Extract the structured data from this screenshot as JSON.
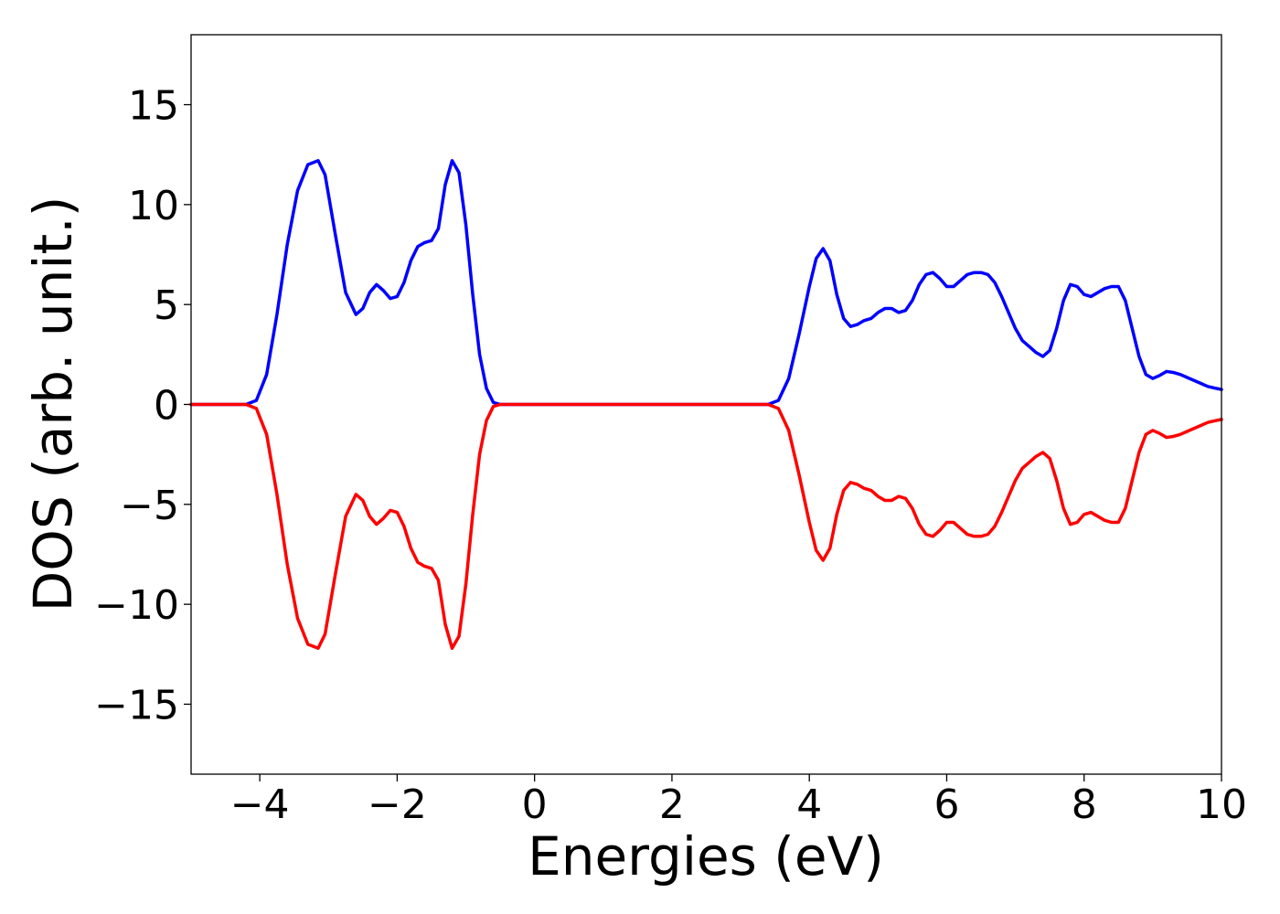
{
  "chart_data": {
    "type": "line",
    "title": "",
    "xlabel": "Energies (eV)",
    "ylabel": "DOS (arb. unit.)",
    "xlim": [
      -5,
      10
    ],
    "ylim": [
      -18.5,
      18.5
    ],
    "grid": false,
    "legend": "none",
    "x_ticks": [
      {
        "value": -4,
        "label": "−4"
      },
      {
        "value": -2,
        "label": "−2"
      },
      {
        "value": 0,
        "label": "0"
      },
      {
        "value": 2,
        "label": "2"
      },
      {
        "value": 4,
        "label": "4"
      },
      {
        "value": 6,
        "label": "6"
      },
      {
        "value": 8,
        "label": "8"
      },
      {
        "value": 10,
        "label": "10"
      }
    ],
    "y_ticks": [
      {
        "value": 15,
        "label": "15"
      },
      {
        "value": 10,
        "label": "10"
      },
      {
        "value": 5,
        "label": "5"
      },
      {
        "value": 0,
        "label": "0"
      },
      {
        "value": -5,
        "label": "−5"
      },
      {
        "value": -10,
        "label": "−10"
      },
      {
        "value": -15,
        "label": "−15"
      }
    ],
    "series": [
      {
        "color": "#0000ff",
        "points": [
          [
            -5,
            0
          ],
          [
            -4.2,
            0
          ],
          [
            -4.05,
            0.2
          ],
          [
            -3.9,
            1.5
          ],
          [
            -3.75,
            4.5
          ],
          [
            -3.6,
            8.0
          ],
          [
            -3.45,
            10.7
          ],
          [
            -3.3,
            12.0
          ],
          [
            -3.15,
            12.2
          ],
          [
            -3.05,
            11.5
          ],
          [
            -2.9,
            8.5
          ],
          [
            -2.75,
            5.6
          ],
          [
            -2.6,
            4.5
          ],
          [
            -2.5,
            4.8
          ],
          [
            -2.4,
            5.6
          ],
          [
            -2.3,
            6.0
          ],
          [
            -2.2,
            5.7
          ],
          [
            -2.1,
            5.3
          ],
          [
            -2.0,
            5.4
          ],
          [
            -1.9,
            6.1
          ],
          [
            -1.8,
            7.2
          ],
          [
            -1.7,
            7.9
          ],
          [
            -1.6,
            8.1
          ],
          [
            -1.5,
            8.2
          ],
          [
            -1.4,
            8.8
          ],
          [
            -1.3,
            11.0
          ],
          [
            -1.2,
            12.2
          ],
          [
            -1.1,
            11.6
          ],
          [
            -1.0,
            9.0
          ],
          [
            -0.9,
            5.5
          ],
          [
            -0.8,
            2.5
          ],
          [
            -0.7,
            0.8
          ],
          [
            -0.6,
            0.1
          ],
          [
            -0.5,
            0
          ],
          [
            3.4,
            0
          ],
          [
            3.55,
            0.2
          ],
          [
            3.7,
            1.3
          ],
          [
            3.85,
            3.5
          ],
          [
            4.0,
            5.9
          ],
          [
            4.1,
            7.3
          ],
          [
            4.2,
            7.8
          ],
          [
            4.3,
            7.2
          ],
          [
            4.4,
            5.5
          ],
          [
            4.5,
            4.3
          ],
          [
            4.6,
            3.9
          ],
          [
            4.7,
            4.0
          ],
          [
            4.8,
            4.2
          ],
          [
            4.9,
            4.3
          ],
          [
            5.0,
            4.6
          ],
          [
            5.1,
            4.8
          ],
          [
            5.2,
            4.8
          ],
          [
            5.3,
            4.6
          ],
          [
            5.4,
            4.7
          ],
          [
            5.5,
            5.2
          ],
          [
            5.6,
            6.0
          ],
          [
            5.7,
            6.5
          ],
          [
            5.8,
            6.6
          ],
          [
            5.9,
            6.3
          ],
          [
            6.0,
            5.9
          ],
          [
            6.1,
            5.9
          ],
          [
            6.2,
            6.2
          ],
          [
            6.3,
            6.5
          ],
          [
            6.4,
            6.6
          ],
          [
            6.5,
            6.6
          ],
          [
            6.6,
            6.5
          ],
          [
            6.7,
            6.1
          ],
          [
            6.8,
            5.4
          ],
          [
            6.9,
            4.6
          ],
          [
            7.0,
            3.8
          ],
          [
            7.1,
            3.2
          ],
          [
            7.2,
            2.9
          ],
          [
            7.3,
            2.6
          ],
          [
            7.4,
            2.4
          ],
          [
            7.5,
            2.7
          ],
          [
            7.6,
            3.8
          ],
          [
            7.7,
            5.2
          ],
          [
            7.8,
            6.0
          ],
          [
            7.9,
            5.9
          ],
          [
            8.0,
            5.5
          ],
          [
            8.1,
            5.4
          ],
          [
            8.2,
            5.6
          ],
          [
            8.3,
            5.8
          ],
          [
            8.4,
            5.9
          ],
          [
            8.5,
            5.9
          ],
          [
            8.6,
            5.2
          ],
          [
            8.7,
            3.8
          ],
          [
            8.8,
            2.4
          ],
          [
            8.9,
            1.5
          ],
          [
            9.0,
            1.3
          ],
          [
            9.1,
            1.45
          ],
          [
            9.2,
            1.65
          ],
          [
            9.3,
            1.6
          ],
          [
            9.4,
            1.5
          ],
          [
            9.5,
            1.35
          ],
          [
            9.6,
            1.2
          ],
          [
            9.7,
            1.05
          ],
          [
            9.8,
            0.9
          ],
          [
            9.9,
            0.82
          ],
          [
            10.0,
            0.75
          ]
        ]
      },
      {
        "color": "#ff0000",
        "points": [
          [
            -5,
            0
          ],
          [
            -4.2,
            0
          ],
          [
            -4.05,
            -0.2
          ],
          [
            -3.9,
            -1.5
          ],
          [
            -3.75,
            -4.5
          ],
          [
            -3.6,
            -8.0
          ],
          [
            -3.45,
            -10.7
          ],
          [
            -3.3,
            -12.0
          ],
          [
            -3.15,
            -12.2
          ],
          [
            -3.05,
            -11.5
          ],
          [
            -2.9,
            -8.5
          ],
          [
            -2.75,
            -5.6
          ],
          [
            -2.6,
            -4.5
          ],
          [
            -2.5,
            -4.8
          ],
          [
            -2.4,
            -5.6
          ],
          [
            -2.3,
            -6.0
          ],
          [
            -2.2,
            -5.7
          ],
          [
            -2.1,
            -5.3
          ],
          [
            -2.0,
            -5.4
          ],
          [
            -1.9,
            -6.1
          ],
          [
            -1.8,
            -7.2
          ],
          [
            -1.7,
            -7.9
          ],
          [
            -1.6,
            -8.1
          ],
          [
            -1.5,
            -8.2
          ],
          [
            -1.4,
            -8.8
          ],
          [
            -1.3,
            -11.0
          ],
          [
            -1.2,
            -12.2
          ],
          [
            -1.1,
            -11.6
          ],
          [
            -1.0,
            -9.0
          ],
          [
            -0.9,
            -5.5
          ],
          [
            -0.8,
            -2.5
          ],
          [
            -0.7,
            -0.8
          ],
          [
            -0.6,
            -0.1
          ],
          [
            -0.5,
            0
          ],
          [
            3.4,
            0
          ],
          [
            3.55,
            -0.2
          ],
          [
            3.7,
            -1.3
          ],
          [
            3.85,
            -3.5
          ],
          [
            4.0,
            -5.9
          ],
          [
            4.1,
            -7.3
          ],
          [
            4.2,
            -7.8
          ],
          [
            4.3,
            -7.2
          ],
          [
            4.4,
            -5.5
          ],
          [
            4.5,
            -4.3
          ],
          [
            4.6,
            -3.9
          ],
          [
            4.7,
            -4.0
          ],
          [
            4.8,
            -4.2
          ],
          [
            4.9,
            -4.3
          ],
          [
            5.0,
            -4.6
          ],
          [
            5.1,
            -4.8
          ],
          [
            5.2,
            -4.8
          ],
          [
            5.3,
            -4.6
          ],
          [
            5.4,
            -4.7
          ],
          [
            5.5,
            -5.2
          ],
          [
            5.6,
            -6.0
          ],
          [
            5.7,
            -6.5
          ],
          [
            5.8,
            -6.6
          ],
          [
            5.9,
            -6.3
          ],
          [
            6.0,
            -5.9
          ],
          [
            6.1,
            -5.9
          ],
          [
            6.2,
            -6.2
          ],
          [
            6.3,
            -6.5
          ],
          [
            6.4,
            -6.6
          ],
          [
            6.5,
            -6.6
          ],
          [
            6.6,
            -6.5
          ],
          [
            6.7,
            -6.1
          ],
          [
            6.8,
            -5.4
          ],
          [
            6.9,
            -4.6
          ],
          [
            7.0,
            -3.8
          ],
          [
            7.1,
            -3.2
          ],
          [
            7.2,
            -2.9
          ],
          [
            7.3,
            -2.6
          ],
          [
            7.4,
            -2.4
          ],
          [
            7.5,
            -2.7
          ],
          [
            7.6,
            -3.8
          ],
          [
            7.7,
            -5.2
          ],
          [
            7.8,
            -6.0
          ],
          [
            7.9,
            -5.9
          ],
          [
            8.0,
            -5.5
          ],
          [
            8.1,
            -5.4
          ],
          [
            8.2,
            -5.6
          ],
          [
            8.3,
            -5.8
          ],
          [
            8.4,
            -5.9
          ],
          [
            8.5,
            -5.9
          ],
          [
            8.6,
            -5.2
          ],
          [
            8.7,
            -3.8
          ],
          [
            8.8,
            -2.4
          ],
          [
            8.9,
            -1.5
          ],
          [
            9.0,
            -1.3
          ],
          [
            9.1,
            -1.45
          ],
          [
            9.2,
            -1.65
          ],
          [
            9.3,
            -1.6
          ],
          [
            9.4,
            -1.5
          ],
          [
            9.5,
            -1.35
          ],
          [
            9.6,
            -1.2
          ],
          [
            9.7,
            -1.05
          ],
          [
            9.8,
            -0.9
          ],
          [
            9.9,
            -0.82
          ],
          [
            10.0,
            -0.75
          ]
        ]
      }
    ]
  }
}
